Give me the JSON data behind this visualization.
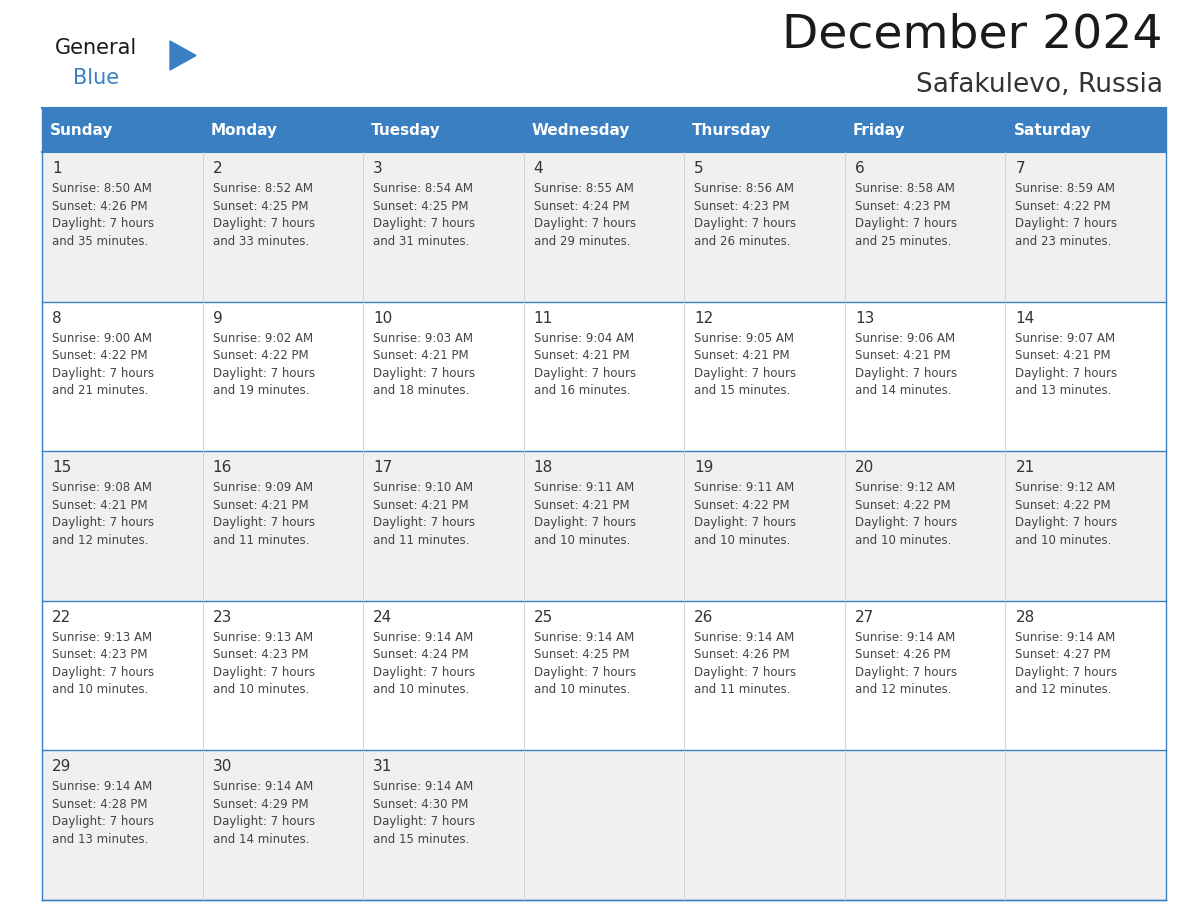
{
  "title": "December 2024",
  "subtitle": "Safakulevo, Russia",
  "days_of_week": [
    "Sunday",
    "Monday",
    "Tuesday",
    "Wednesday",
    "Thursday",
    "Friday",
    "Saturday"
  ],
  "header_bg": "#3a7fc1",
  "header_text": "#FFFFFF",
  "cell_bg_odd": "#F0F0F0",
  "cell_bg_even": "#FFFFFF",
  "border_color_blue": "#3a7fc1",
  "border_color_light": "#cccccc",
  "day_num_color": "#333333",
  "cell_text_color": "#444444",
  "title_color": "#1a1a1a",
  "subtitle_color": "#333333",
  "logo_general_color": "#1a1a1a",
  "logo_blue_color": "#3a7fc1",
  "weeks": [
    [
      {
        "day": 1,
        "sunrise": "8:50 AM",
        "sunset": "4:26 PM",
        "daylight": "7 hours",
        "daylight2": "and 35 minutes."
      },
      {
        "day": 2,
        "sunrise": "8:52 AM",
        "sunset": "4:25 PM",
        "daylight": "7 hours",
        "daylight2": "and 33 minutes."
      },
      {
        "day": 3,
        "sunrise": "8:54 AM",
        "sunset": "4:25 PM",
        "daylight": "7 hours",
        "daylight2": "and 31 minutes."
      },
      {
        "day": 4,
        "sunrise": "8:55 AM",
        "sunset": "4:24 PM",
        "daylight": "7 hours",
        "daylight2": "and 29 minutes."
      },
      {
        "day": 5,
        "sunrise": "8:56 AM",
        "sunset": "4:23 PM",
        "daylight": "7 hours",
        "daylight2": "and 26 minutes."
      },
      {
        "day": 6,
        "sunrise": "8:58 AM",
        "sunset": "4:23 PM",
        "daylight": "7 hours",
        "daylight2": "and 25 minutes."
      },
      {
        "day": 7,
        "sunrise": "8:59 AM",
        "sunset": "4:22 PM",
        "daylight": "7 hours",
        "daylight2": "and 23 minutes."
      }
    ],
    [
      {
        "day": 8,
        "sunrise": "9:00 AM",
        "sunset": "4:22 PM",
        "daylight": "7 hours",
        "daylight2": "and 21 minutes."
      },
      {
        "day": 9,
        "sunrise": "9:02 AM",
        "sunset": "4:22 PM",
        "daylight": "7 hours",
        "daylight2": "and 19 minutes."
      },
      {
        "day": 10,
        "sunrise": "9:03 AM",
        "sunset": "4:21 PM",
        "daylight": "7 hours",
        "daylight2": "and 18 minutes."
      },
      {
        "day": 11,
        "sunrise": "9:04 AM",
        "sunset": "4:21 PM",
        "daylight": "7 hours",
        "daylight2": "and 16 minutes."
      },
      {
        "day": 12,
        "sunrise": "9:05 AM",
        "sunset": "4:21 PM",
        "daylight": "7 hours",
        "daylight2": "and 15 minutes."
      },
      {
        "day": 13,
        "sunrise": "9:06 AM",
        "sunset": "4:21 PM",
        "daylight": "7 hours",
        "daylight2": "and 14 minutes."
      },
      {
        "day": 14,
        "sunrise": "9:07 AM",
        "sunset": "4:21 PM",
        "daylight": "7 hours",
        "daylight2": "and 13 minutes."
      }
    ],
    [
      {
        "day": 15,
        "sunrise": "9:08 AM",
        "sunset": "4:21 PM",
        "daylight": "7 hours",
        "daylight2": "and 12 minutes."
      },
      {
        "day": 16,
        "sunrise": "9:09 AM",
        "sunset": "4:21 PM",
        "daylight": "7 hours",
        "daylight2": "and 11 minutes."
      },
      {
        "day": 17,
        "sunrise": "9:10 AM",
        "sunset": "4:21 PM",
        "daylight": "7 hours",
        "daylight2": "and 11 minutes."
      },
      {
        "day": 18,
        "sunrise": "9:11 AM",
        "sunset": "4:21 PM",
        "daylight": "7 hours",
        "daylight2": "and 10 minutes."
      },
      {
        "day": 19,
        "sunrise": "9:11 AM",
        "sunset": "4:22 PM",
        "daylight": "7 hours",
        "daylight2": "and 10 minutes."
      },
      {
        "day": 20,
        "sunrise": "9:12 AM",
        "sunset": "4:22 PM",
        "daylight": "7 hours",
        "daylight2": "and 10 minutes."
      },
      {
        "day": 21,
        "sunrise": "9:12 AM",
        "sunset": "4:22 PM",
        "daylight": "7 hours",
        "daylight2": "and 10 minutes."
      }
    ],
    [
      {
        "day": 22,
        "sunrise": "9:13 AM",
        "sunset": "4:23 PM",
        "daylight": "7 hours",
        "daylight2": "and 10 minutes."
      },
      {
        "day": 23,
        "sunrise": "9:13 AM",
        "sunset": "4:23 PM",
        "daylight": "7 hours",
        "daylight2": "and 10 minutes."
      },
      {
        "day": 24,
        "sunrise": "9:14 AM",
        "sunset": "4:24 PM",
        "daylight": "7 hours",
        "daylight2": "and 10 minutes."
      },
      {
        "day": 25,
        "sunrise": "9:14 AM",
        "sunset": "4:25 PM",
        "daylight": "7 hours",
        "daylight2": "and 10 minutes."
      },
      {
        "day": 26,
        "sunrise": "9:14 AM",
        "sunset": "4:26 PM",
        "daylight": "7 hours",
        "daylight2": "and 11 minutes."
      },
      {
        "day": 27,
        "sunrise": "9:14 AM",
        "sunset": "4:26 PM",
        "daylight": "7 hours",
        "daylight2": "and 12 minutes."
      },
      {
        "day": 28,
        "sunrise": "9:14 AM",
        "sunset": "4:27 PM",
        "daylight": "7 hours",
        "daylight2": "and 12 minutes."
      }
    ],
    [
      {
        "day": 29,
        "sunrise": "9:14 AM",
        "sunset": "4:28 PM",
        "daylight": "7 hours",
        "daylight2": "and 13 minutes."
      },
      {
        "day": 30,
        "sunrise": "9:14 AM",
        "sunset": "4:29 PM",
        "daylight": "7 hours",
        "daylight2": "and 14 minutes."
      },
      {
        "day": 31,
        "sunrise": "9:14 AM",
        "sunset": "4:30 PM",
        "daylight": "7 hours",
        "daylight2": "and 15 minutes."
      },
      null,
      null,
      null,
      null
    ]
  ]
}
